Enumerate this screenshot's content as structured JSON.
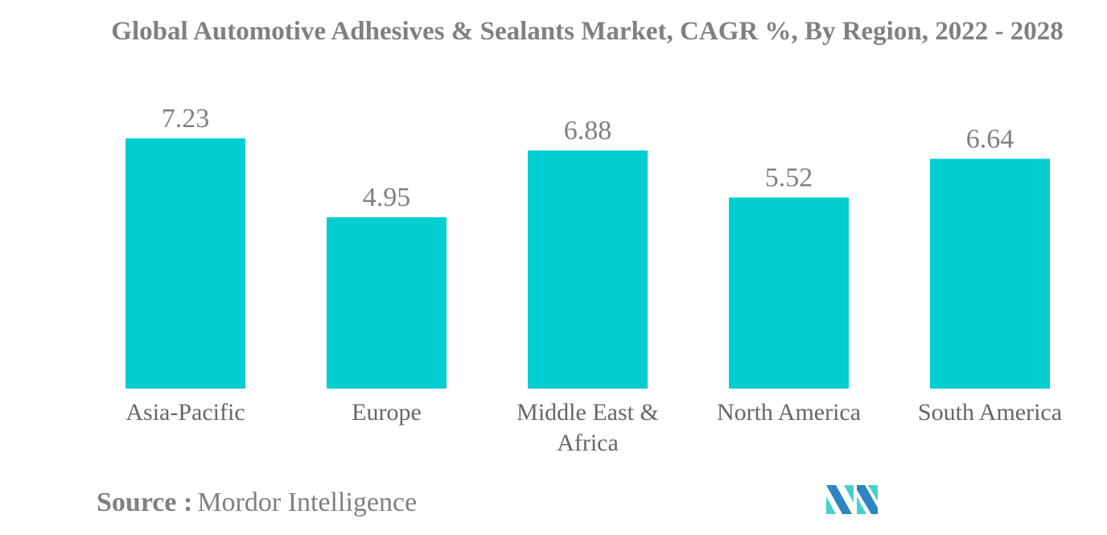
{
  "chart_data": {
    "type": "bar",
    "title": "Global Automotive Adhesives & Sealants Market, CAGR %, By Region, 2022 - 2028",
    "categories": [
      "Asia-Pacific",
      "Europe",
      "Middle East & Africa",
      "North America",
      "South America"
    ],
    "values": [
      7.23,
      4.95,
      6.88,
      5.52,
      6.64
    ],
    "data_labels": [
      "7.23",
      "4.95",
      "6.88",
      "5.52",
      "6.64"
    ],
    "xlabel": "",
    "ylabel": "",
    "ylim": [
      0,
      7.23
    ],
    "grid": false,
    "bar_color": "#00CED1"
  },
  "source": {
    "label": "Source :",
    "value": "Mordor Intelligence"
  },
  "logo": {
    "colors": [
      "#2E86C1",
      "#48D1CC"
    ]
  }
}
